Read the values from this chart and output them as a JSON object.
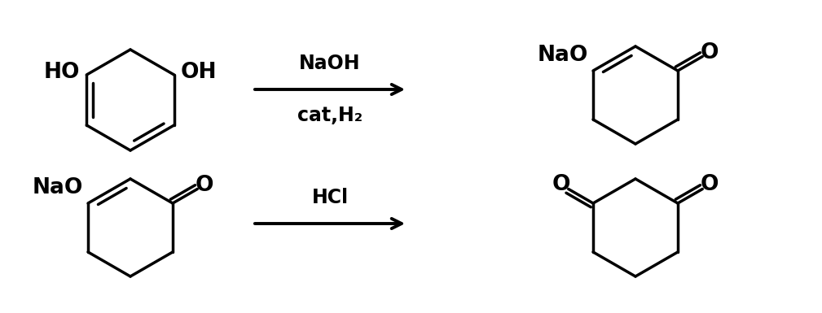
{
  "background_color": "#ffffff",
  "line_color": "#000000",
  "line_width": 2.5,
  "text_color": "#000000",
  "reaction1_label_top": "NaOH",
  "reaction1_label_bottom": "cat,H₂",
  "reaction2_label": "HCl",
  "font_size_reagent": 17,
  "font_size_atom": 19,
  "fig_width": 10.09,
  "fig_height": 3.85,
  "dpi": 100
}
